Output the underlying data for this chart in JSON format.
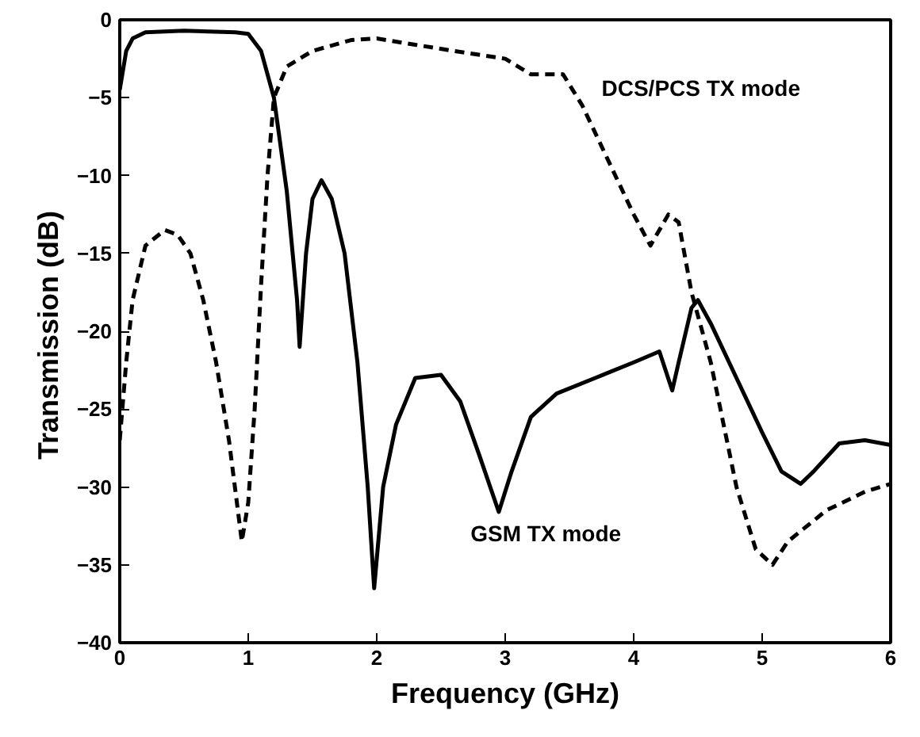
{
  "chart_data": {
    "type": "line",
    "xlabel": "Frequency (GHz)",
    "ylabel": "Transmission  (dB)",
    "xlim": [
      0,
      6
    ],
    "ylim": [
      -40,
      0
    ],
    "xticks": [
      0,
      1,
      2,
      3,
      4,
      5,
      6
    ],
    "yticks": [
      -40,
      -35,
      -30,
      -25,
      -20,
      -15,
      -10,
      -5,
      0
    ],
    "grid": false,
    "series": [
      {
        "name": "GSM TX mode",
        "color": "#000000",
        "line_style": "solid",
        "x": [
          0.0,
          0.05,
          0.1,
          0.2,
          0.5,
          0.9,
          1.0,
          1.1,
          1.2,
          1.3,
          1.38,
          1.4,
          1.45,
          1.5,
          1.57,
          1.65,
          1.75,
          1.85,
          1.93,
          1.98,
          2.05,
          2.15,
          2.3,
          2.5,
          2.65,
          2.8,
          2.95,
          3.05,
          3.2,
          3.4,
          3.7,
          4.0,
          4.2,
          4.3,
          4.35,
          4.45,
          4.5,
          4.6,
          4.8,
          5.0,
          5.15,
          5.3,
          5.4,
          5.6,
          5.8,
          6.0
        ],
        "values": [
          -4.5,
          -2,
          -1.2,
          -0.8,
          -0.7,
          -0.8,
          -0.9,
          -2,
          -5,
          -11,
          -18,
          -21,
          -15,
          -11.5,
          -10.3,
          -11.5,
          -15,
          -22,
          -30,
          -36.5,
          -30,
          -26,
          -23,
          -22.8,
          -24.5,
          -28,
          -31.6,
          -29,
          -25.5,
          -24,
          -23,
          -22,
          -21.3,
          -23.8,
          -22,
          -18.5,
          -18,
          -19.5,
          -23,
          -26.5,
          -29,
          -29.8,
          -29,
          -27.2,
          -27,
          -27.3
        ]
      },
      {
        "name": "DCS/PCS TX mode",
        "color": "#000000",
        "line_style": "dashed",
        "x": [
          0.0,
          0.05,
          0.1,
          0.2,
          0.35,
          0.45,
          0.55,
          0.65,
          0.75,
          0.85,
          0.95,
          1.0,
          1.05,
          1.1,
          1.15,
          1.2,
          1.3,
          1.5,
          1.8,
          2.0,
          2.3,
          2.6,
          3.0,
          3.2,
          3.45,
          3.6,
          3.8,
          4.0,
          4.13,
          4.2,
          4.27,
          4.35,
          4.45,
          4.6,
          4.8,
          4.95,
          5.08,
          5.2,
          5.5,
          5.8,
          6.0
        ],
        "values": [
          -27,
          -22,
          -18,
          -14.5,
          -13.5,
          -13.8,
          -15,
          -18,
          -22,
          -27,
          -33.5,
          -31,
          -25,
          -17,
          -10,
          -5,
          -3,
          -2,
          -1.3,
          -1.2,
          -1.6,
          -2,
          -2.5,
          -3.5,
          -3.5,
          -5.5,
          -9,
          -12.5,
          -14.5,
          -13.5,
          -12.5,
          -13,
          -17.5,
          -22,
          -30,
          -34,
          -35,
          -33.5,
          -31.5,
          -30.3,
          -29.8
        ]
      }
    ]
  }
}
